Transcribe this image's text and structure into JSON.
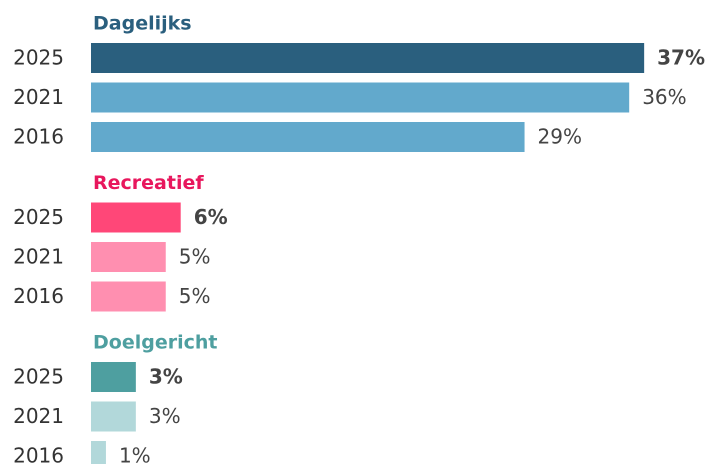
{
  "chart_data": [
    {
      "type": "bar",
      "title": "Dagelijks",
      "title_color": "#2a5f7e",
      "categories": [
        "2025",
        "2021",
        "2016"
      ],
      "values": [
        37,
        36,
        29
      ],
      "value_labels": [
        "37%",
        "36%",
        "29%"
      ],
      "colors": [
        "#2a5f7e",
        "#62a9cc",
        "#62a9cc"
      ]
    },
    {
      "type": "bar",
      "title": "Recreatief",
      "title_color": "#e8175d",
      "categories": [
        "2025",
        "2021",
        "2016"
      ],
      "values": [
        6,
        5,
        5
      ],
      "value_labels": [
        "6%",
        "5%",
        "5%"
      ],
      "colors": [
        "#ff4778",
        "#ff8fb0",
        "#ff8fb0"
      ]
    },
    {
      "type": "bar",
      "title": "Doelgericht",
      "title_color": "#4e9fa0",
      "categories": [
        "2025",
        "2021",
        "2016"
      ],
      "values": [
        3,
        3,
        1
      ],
      "value_labels": [
        "3%",
        "3%",
        "1%"
      ],
      "colors": [
        "#4e9fa0",
        "#b2d8da",
        "#b2d8da"
      ]
    }
  ]
}
